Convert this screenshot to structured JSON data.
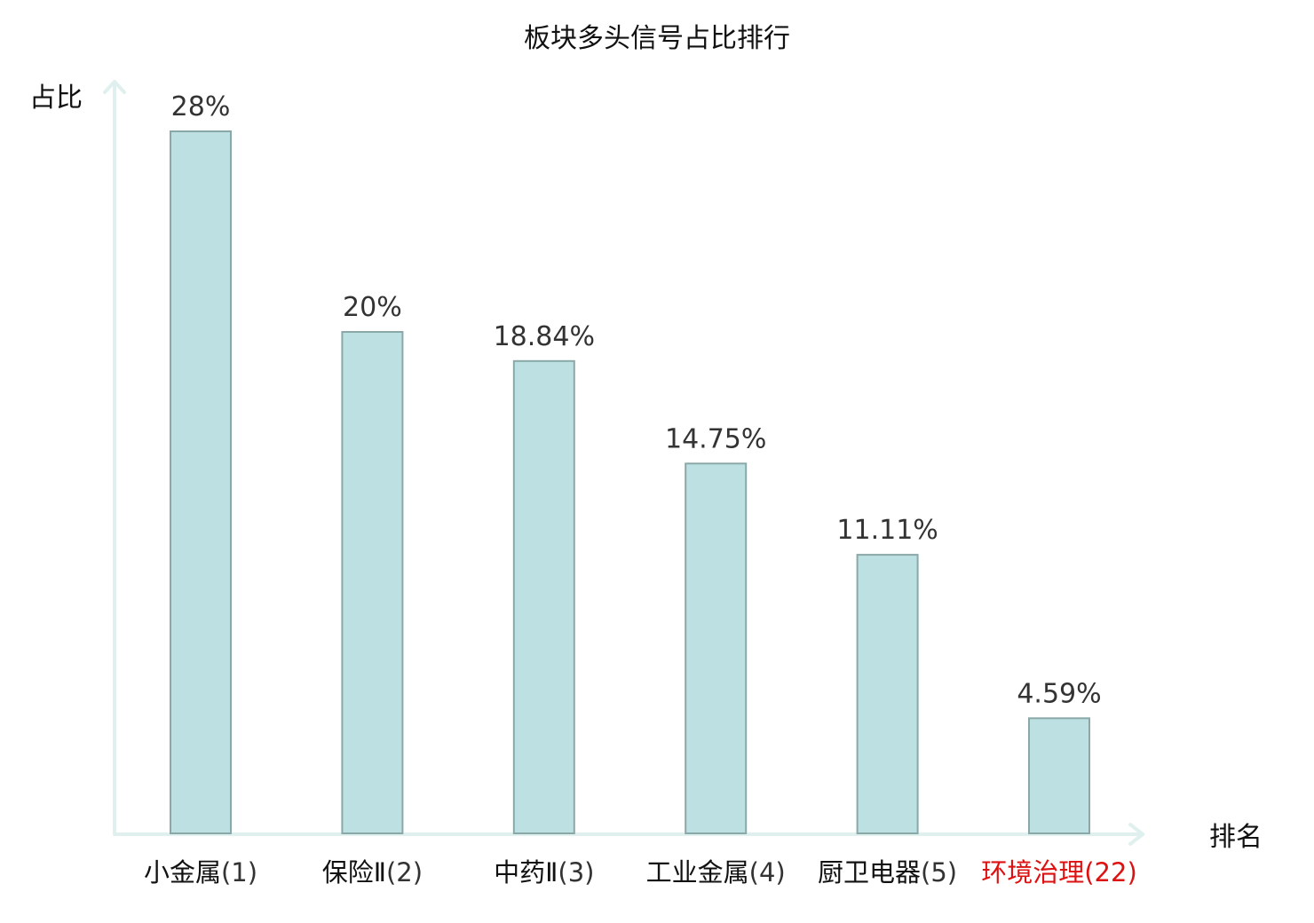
{
  "chart_data": {
    "type": "bar",
    "title": "板块多头信号占比排行",
    "ylabel": "占比",
    "xlabel": "排名",
    "categories": [
      {
        "name": "小金属",
        "rank": "(1)"
      },
      {
        "name": "保险Ⅱ",
        "rank": "(2)"
      },
      {
        "name": "中药Ⅱ",
        "rank": "(3)"
      },
      {
        "name": "工业金属",
        "rank": "(4)"
      },
      {
        "name": "厨卫电器",
        "rank": "(5)"
      },
      {
        "name": "环境治理",
        "rank": "(22)"
      }
    ],
    "values": [
      28,
      20,
      18.84,
      14.75,
      11.11,
      4.59
    ],
    "value_labels": [
      "28%",
      "20%",
      "18.84%",
      "14.75%",
      "11.11%",
      "4.59%"
    ],
    "highlight_index": 5,
    "ylim": [
      0,
      28
    ],
    "grid": false,
    "colors": {
      "bar_fill": "#bde0e2",
      "bar_stroke": "#8aa8a8",
      "axis": "#dff0ee",
      "highlight_text": "#dd1111"
    }
  }
}
